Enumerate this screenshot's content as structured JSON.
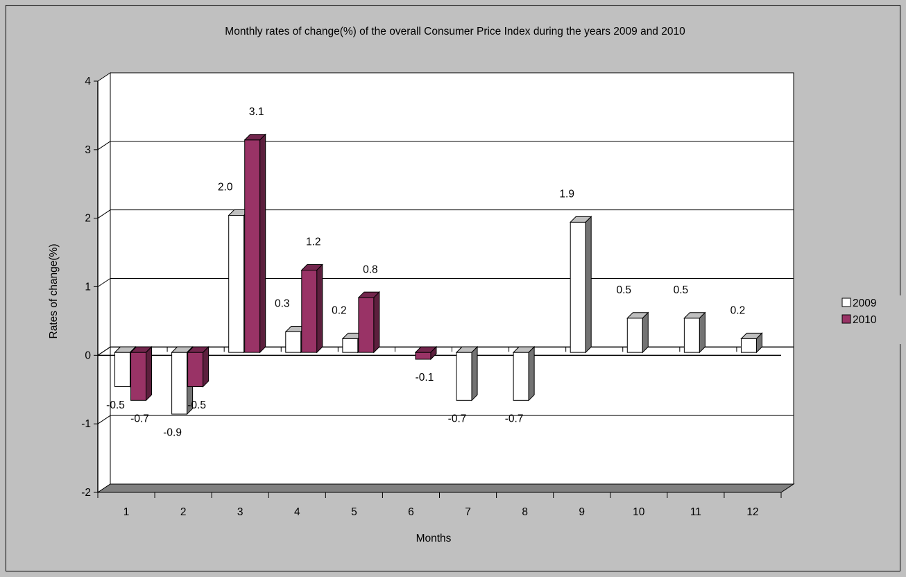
{
  "chart_data": {
    "type": "bar",
    "title": "Monthly rates of change(%) of the overall Consumer Price Index during the years 2009 and 2010",
    "xlabel": "Months",
    "ylabel": "Rates of change(%)",
    "categories": [
      "1",
      "2",
      "3",
      "4",
      "5",
      "6",
      "7",
      "8",
      "9",
      "10",
      "11",
      "12"
    ],
    "series": [
      {
        "name": "2009",
        "values": [
          -0.5,
          -0.9,
          2.0,
          0.3,
          0.2,
          null,
          -0.7,
          -0.7,
          1.9,
          0.5,
          0.5,
          0.2
        ],
        "labels": [
          "-0.5",
          "-0.9",
          "2.0",
          "0.3",
          "0.2",
          "",
          "-0.7",
          "-0.7",
          "1.9",
          "0.5",
          "0.5",
          "0.2"
        ],
        "color": "#ffffff"
      },
      {
        "name": "2010",
        "values": [
          -0.7,
          -0.5,
          3.1,
          1.2,
          0.8,
          -0.1,
          null,
          null,
          null,
          null,
          null,
          null
        ],
        "labels": [
          "-0.7",
          "-0.5",
          "3.1",
          "1.2",
          "0.8",
          "-0.1",
          "",
          "",
          "",
          "",
          "",
          ""
        ],
        "color": "#993366"
      }
    ],
    "ylim": [
      -2,
      4
    ],
    "yticks": [
      "-2",
      "-1",
      "0",
      "1",
      "2",
      "3",
      "4"
    ],
    "grid": true,
    "legend_position": "right",
    "plot_background": "#ffffff",
    "floor_color": "#808080"
  }
}
